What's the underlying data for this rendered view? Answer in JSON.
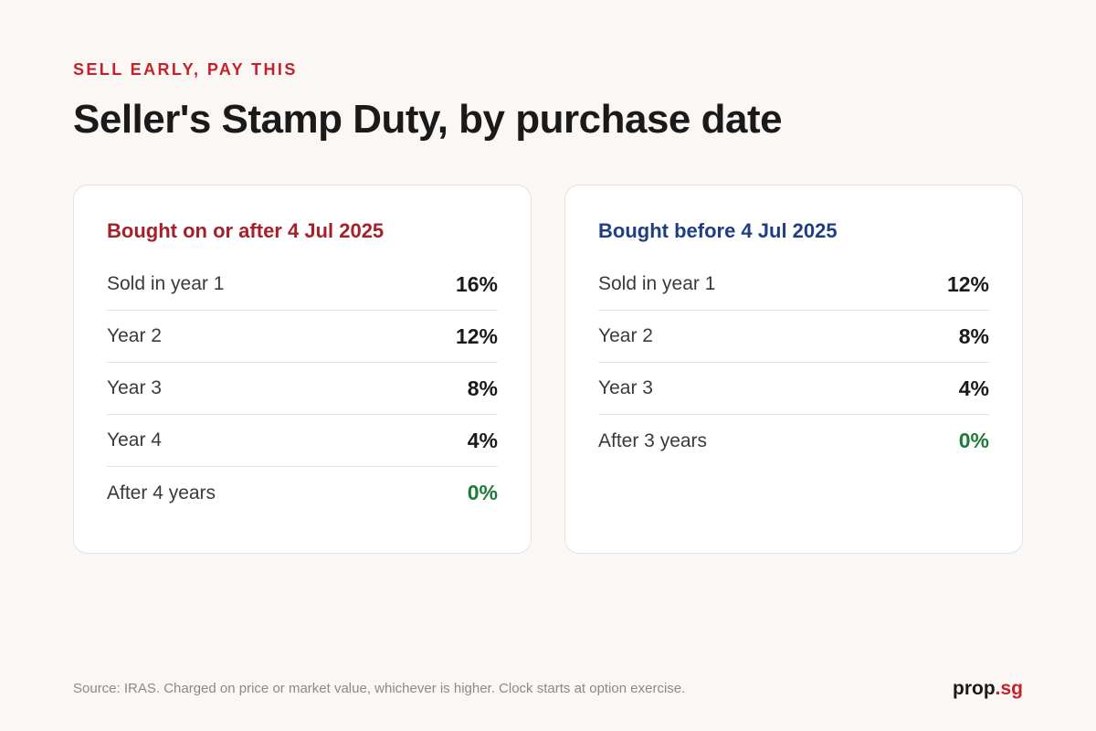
{
  "header": {
    "eyebrow": "SELL EARLY, PAY THIS",
    "title": "Seller's Stamp Duty, by purchase date"
  },
  "cards": [
    {
      "title": "Bought on or after 4 Jul 2025",
      "accent_color": "#a52128",
      "rows": [
        {
          "label": "Sold in year 1",
          "value": "16%"
        },
        {
          "label": "Year 2",
          "value": "12%"
        },
        {
          "label": "Year 3",
          "value": "8%"
        },
        {
          "label": "Year 4",
          "value": "4%"
        },
        {
          "label": "After 4 years",
          "value": "0%"
        }
      ]
    },
    {
      "title": "Bought before 4 Jul 2025",
      "accent_color": "#1f3f82",
      "rows": [
        {
          "label": "Sold in year 1",
          "value": "12%"
        },
        {
          "label": "Year 2",
          "value": "8%"
        },
        {
          "label": "Year 3",
          "value": "4%"
        },
        {
          "label": "After 3 years",
          "value": "0%"
        }
      ]
    }
  ],
  "footer": {
    "source": "Source: IRAS. Charged on price or market value, whichever is higher. Clock starts at option exercise.",
    "brand_main": "prop",
    "brand_accent": ".sg"
  },
  "colors": {
    "eyebrow": "#c8202b",
    "zero_value": "#1e7a37",
    "background": "#faf7f4"
  }
}
